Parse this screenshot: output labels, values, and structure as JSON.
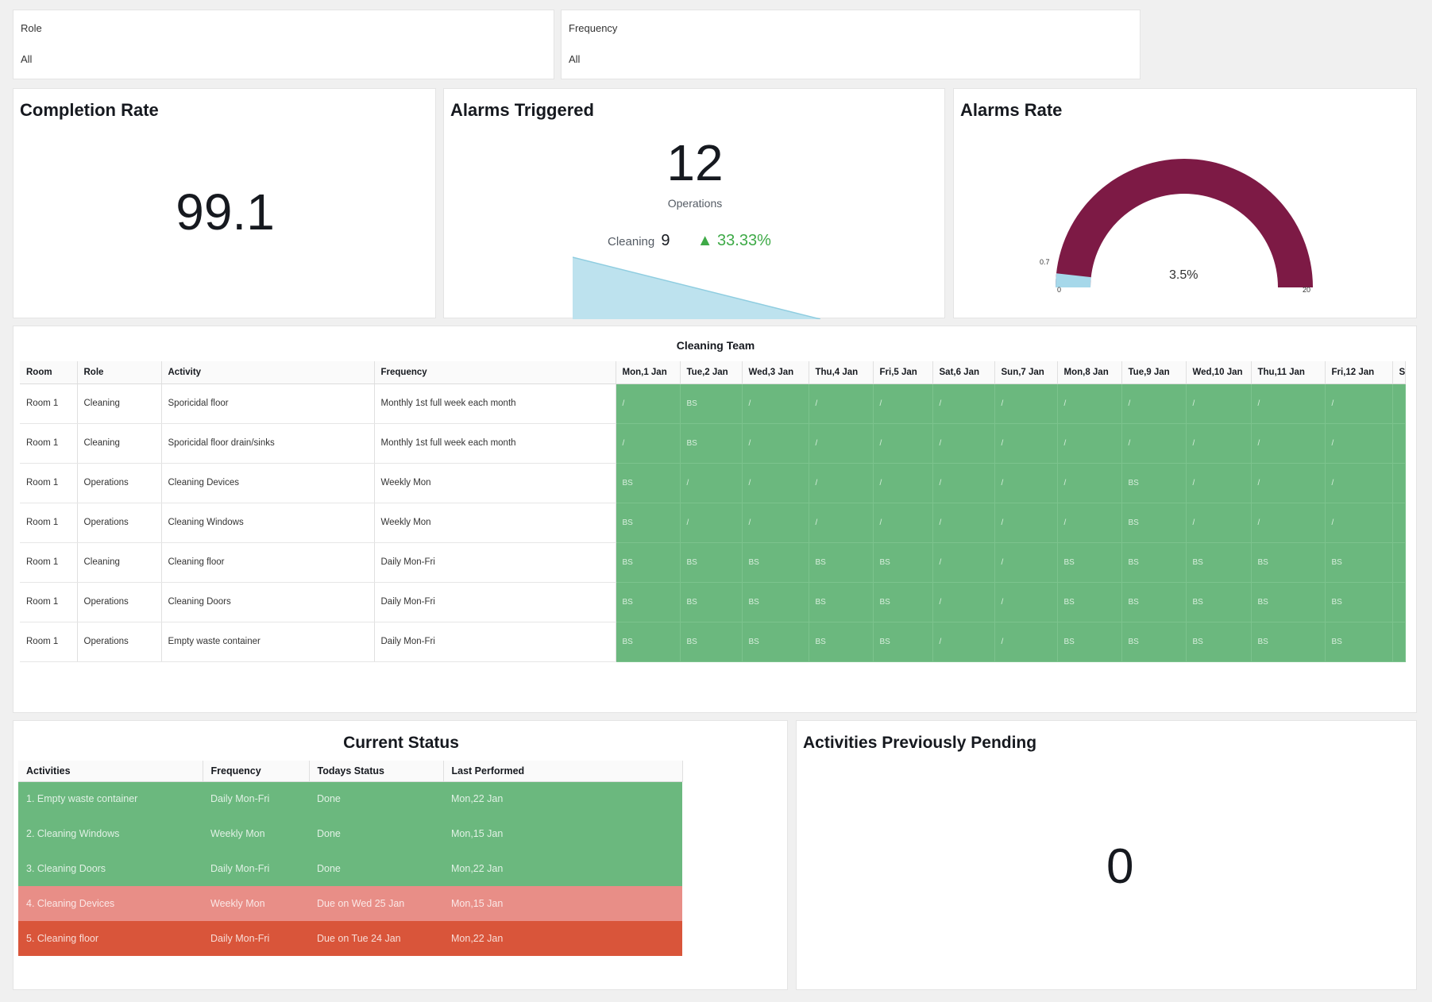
{
  "filters": [
    {
      "label": "Role",
      "value": "All"
    },
    {
      "label": "Frequency",
      "value": "All"
    }
  ],
  "completion_rate": {
    "title": "Completion Rate",
    "value": "99.1"
  },
  "alarms_triggered": {
    "title": "Alarms Triggered",
    "value": "12",
    "label": "Operations",
    "compare_label": "Cleaning",
    "compare_value": "9",
    "change": "▲ 33.33%"
  },
  "alarms_rate": {
    "title": "Alarms Rate",
    "value_label": "3.5%",
    "min_label": "0",
    "max_label": "20",
    "marker_label": "0.7",
    "value_fraction": 0.035,
    "colors": {
      "arc": "#7d1a45",
      "marker": "#a6d8ea"
    }
  },
  "cleaning_team": {
    "title": "Cleaning Team",
    "fixed_columns": [
      "Room",
      "Role",
      "Activity",
      "Frequency"
    ],
    "day_columns": [
      "Mon,1 Jan",
      "Tue,2 Jan",
      "Wed,3 Jan",
      "Thu,4 Jan",
      "Fri,5 Jan",
      "Sat,6 Jan",
      "Sun,7 Jan",
      "Mon,8 Jan",
      "Tue,9 Jan",
      "Wed,10 Jan",
      "Thu,11 Jan",
      "Fri,12 Jan",
      "S"
    ],
    "rows": [
      {
        "room": "Room 1",
        "role": "Cleaning",
        "activity": "Sporicidal floor",
        "frequency": "Monthly 1st full week each month",
        "days": [
          "/",
          "BS",
          "/",
          "/",
          "/",
          "/",
          "/",
          "/",
          "/",
          "/",
          "/",
          "/",
          ""
        ]
      },
      {
        "room": "Room 1",
        "role": "Cleaning",
        "activity": "Sporicidal floor drain/sinks",
        "frequency": "Monthly 1st full week each month",
        "days": [
          "/",
          "BS",
          "/",
          "/",
          "/",
          "/",
          "/",
          "/",
          "/",
          "/",
          "/",
          "/",
          ""
        ]
      },
      {
        "room": "Room 1",
        "role": "Operations",
        "activity": "Cleaning Devices",
        "frequency": "Weekly Mon",
        "days": [
          "BS",
          "/",
          "/",
          "/",
          "/",
          "/",
          "/",
          "/",
          "BS",
          "/",
          "/",
          "/",
          ""
        ]
      },
      {
        "room": "Room 1",
        "role": "Operations",
        "activity": "Cleaning Windows",
        "frequency": "Weekly Mon",
        "days": [
          "BS",
          "/",
          "/",
          "/",
          "/",
          "/",
          "/",
          "/",
          "BS",
          "/",
          "/",
          "/",
          ""
        ]
      },
      {
        "room": "Room 1",
        "role": "Cleaning",
        "activity": "Cleaning floor",
        "frequency": "Daily Mon-Fri",
        "days": [
          "BS",
          "BS",
          "BS",
          "BS",
          "BS",
          "/",
          "/",
          "BS",
          "BS",
          "BS",
          "BS",
          "BS",
          ""
        ]
      },
      {
        "room": "Room 1",
        "role": "Operations",
        "activity": "Cleaning Doors",
        "frequency": "Daily Mon-Fri",
        "days": [
          "BS",
          "BS",
          "BS",
          "BS",
          "BS",
          "/",
          "/",
          "BS",
          "BS",
          "BS",
          "BS",
          "BS",
          ""
        ]
      },
      {
        "room": "Room 1",
        "role": "Operations",
        "activity": "Empty waste container",
        "frequency": "Daily Mon-Fri",
        "days": [
          "BS",
          "BS",
          "BS",
          "BS",
          "BS",
          "/",
          "/",
          "BS",
          "BS",
          "BS",
          "BS",
          "BS",
          ""
        ]
      }
    ]
  },
  "current_status": {
    "title": "Current Status",
    "columns": [
      "Activities",
      "Frequency",
      "Todays Status",
      "Last Performed"
    ],
    "rows": [
      {
        "activity": "1. Empty waste container",
        "frequency": "Daily Mon-Fri",
        "status": "Done",
        "last": "Mon,22 Jan",
        "color": "#6bb87e"
      },
      {
        "activity": "2. Cleaning Windows",
        "frequency": "Weekly Mon",
        "status": "Done",
        "last": "Mon,15 Jan",
        "color": "#6bb87e"
      },
      {
        "activity": "3. Cleaning Doors",
        "frequency": "Daily Mon-Fri",
        "status": "Done",
        "last": "Mon,22 Jan",
        "color": "#6bb87e"
      },
      {
        "activity": "4. Cleaning Devices",
        "frequency": "Weekly Mon",
        "status": "Due on Wed 25 Jan",
        "last": "Mon,15 Jan",
        "color": "#e88e87"
      },
      {
        "activity": "5. Cleaning floor",
        "frequency": "Daily Mon-Fri",
        "status": "Due on Tue 24 Jan",
        "last": "Mon,22 Jan",
        "color": "#d9553a"
      }
    ]
  },
  "activities_pending": {
    "title": "Activities Previously Pending",
    "value": "0"
  }
}
